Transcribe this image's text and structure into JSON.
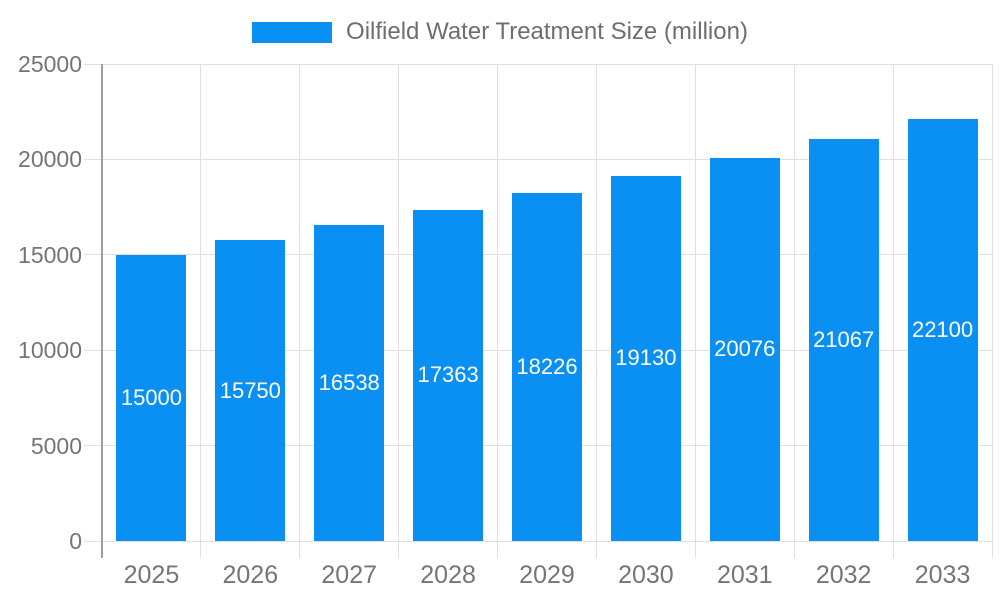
{
  "chart_data": {
    "type": "bar",
    "title": "Oilfield Water Treatment Size (million)",
    "series_name": "Oilfield Water Treatment Size (million)",
    "categories": [
      "2025",
      "2026",
      "2027",
      "2028",
      "2029",
      "2030",
      "2031",
      "2032",
      "2033"
    ],
    "values": [
      15000,
      15750,
      16538,
      17363,
      18226,
      19130,
      20076,
      21067,
      22100
    ],
    "xlabel": "",
    "ylabel": "",
    "ylim": [
      0,
      25000
    ],
    "yticks": [
      0,
      5000,
      10000,
      15000,
      20000,
      25000
    ],
    "grid": true,
    "legend_position": "top",
    "colors": {
      "bar": "#0a90f2",
      "axis_line": "#9e9e9e",
      "gridline": "#e0e0e0",
      "tick_label": "#757575",
      "legend_text": "#6e6e6e",
      "value_label": "#ffffff",
      "background": "#ffffff"
    }
  }
}
